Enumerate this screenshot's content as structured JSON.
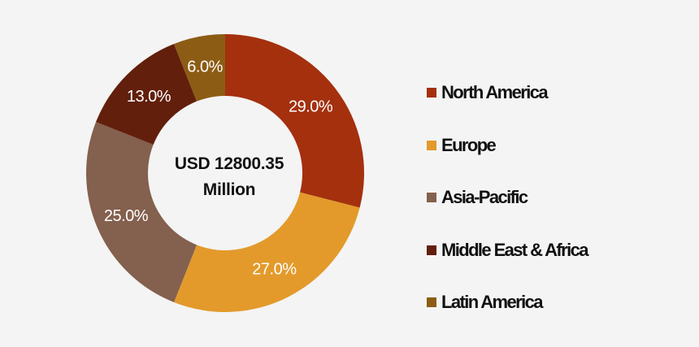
{
  "chart_data": {
    "type": "pie",
    "center_label": [
      "USD 12800.35",
      "Million"
    ],
    "slices": [
      {
        "name": "North America",
        "value": 29.0,
        "label": "29.0%",
        "color": "#a4300e"
      },
      {
        "name": "Europe",
        "value": 27.0,
        "label": "27.0%",
        "color": "#e39a2b"
      },
      {
        "name": "Asia-Pacific",
        "value": 25.0,
        "label": "25.0%",
        "color": "#84604e"
      },
      {
        "name": "Middle East & Africa",
        "value": 13.0,
        "label": "13.0%",
        "color": "#621f0b"
      },
      {
        "name": "Latin America",
        "value": 6.0,
        "label": "6.0%",
        "color": "#8c5c14"
      }
    ],
    "legend_position": "right",
    "hole": "donut"
  }
}
